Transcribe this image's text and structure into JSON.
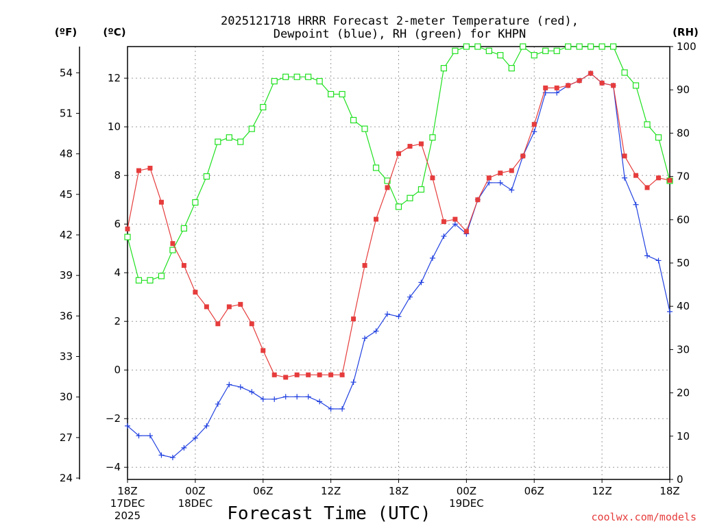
{
  "chart_data": {
    "type": "line",
    "title_line1": "2025121718 HRRR Forecast 2-meter Temperature (red),",
    "title_line2": "Dewpoint (blue), RH (green) for KHPN",
    "unit_f": "(ºF)",
    "unit_c": "(ºC)",
    "unit_rh": "(RH)",
    "xlabel": "Forecast Time (UTC)",
    "credit": "coolwx.com/models",
    "forecast_hours": [
      0,
      1,
      2,
      3,
      4,
      5,
      6,
      7,
      8,
      9,
      10,
      11,
      12,
      13,
      14,
      15,
      16,
      17,
      18,
      19,
      20,
      21,
      22,
      23,
      24,
      25,
      26,
      27,
      28,
      29,
      30,
      31,
      32,
      33,
      34,
      35,
      36,
      37,
      38,
      39,
      40,
      41,
      42,
      43,
      44,
      45,
      46,
      47,
      48
    ],
    "x_range": [
      0,
      48
    ],
    "x_ticks": [
      {
        "hour": 0,
        "label": "18Z",
        "sub1": "17DEC",
        "sub2": "2025"
      },
      {
        "hour": 6,
        "label": "00Z",
        "sub1": "18DEC",
        "sub2": ""
      },
      {
        "hour": 12,
        "label": "06Z",
        "sub1": "",
        "sub2": ""
      },
      {
        "hour": 18,
        "label": "12Z",
        "sub1": "",
        "sub2": ""
      },
      {
        "hour": 24,
        "label": "18Z",
        "sub1": "",
        "sub2": ""
      },
      {
        "hour": 30,
        "label": "00Z",
        "sub1": "19DEC",
        "sub2": ""
      },
      {
        "hour": 36,
        "label": "06Z",
        "sub1": "",
        "sub2": ""
      },
      {
        "hour": 42,
        "label": "12Z",
        "sub1": "",
        "sub2": ""
      },
      {
        "hour": 48,
        "label": "18Z",
        "sub1": "",
        "sub2": ""
      }
    ],
    "celsius_range": [
      -4.5,
      13.3
    ],
    "celsius_ticks": [
      "-4",
      "-2",
      "0",
      "2",
      "4",
      "6",
      "8",
      "10",
      "12"
    ],
    "fahrenheit_ticks": [
      "24",
      "27",
      "30",
      "33",
      "36",
      "39",
      "42",
      "45",
      "48",
      "51",
      "54"
    ],
    "rh_range": [
      0,
      100
    ],
    "rh_ticks": [
      "0",
      "10",
      "20",
      "30",
      "40",
      "50",
      "60",
      "70",
      "80",
      "90",
      "100"
    ],
    "series": [
      {
        "name": "Temperature",
        "unit": "C",
        "color": "#e63c3c",
        "marker": "filled-square",
        "values": [
          5.8,
          8.2,
          8.3,
          6.9,
          5.2,
          4.3,
          3.2,
          2.6,
          1.9,
          2.6,
          2.7,
          1.9,
          0.8,
          -0.2,
          -0.3,
          -0.2,
          -0.2,
          -0.2,
          -0.2,
          -0.2,
          2.1,
          4.3,
          6.2,
          7.5,
          8.9,
          9.2,
          9.3,
          7.9,
          6.1,
          6.2,
          5.7,
          7.0,
          7.9,
          8.1,
          8.2,
          8.8,
          10.1,
          11.6,
          11.6,
          11.7,
          11.9,
          12.2,
          11.8,
          11.7,
          8.8,
          8.0,
          7.5,
          7.9,
          7.8
        ]
      },
      {
        "name": "Dewpoint",
        "unit": "C",
        "color": "#2040e0",
        "marker": "plus",
        "values": [
          -2.3,
          -2.7,
          -2.7,
          -3.5,
          -3.6,
          -3.2,
          -2.8,
          -2.3,
          -1.4,
          -0.6,
          -0.7,
          -0.9,
          -1.2,
          -1.2,
          -1.1,
          -1.1,
          -1.1,
          -1.3,
          -1.6,
          -1.6,
          -0.5,
          1.3,
          1.6,
          2.3,
          2.2,
          3.0,
          3.6,
          4.6,
          5.5,
          6.0,
          5.6,
          7.0,
          7.7,
          7.7,
          7.4,
          8.8,
          9.8,
          11.4,
          11.4,
          11.7,
          11.9,
          12.2,
          11.8,
          11.7,
          7.9,
          6.8,
          4.7,
          4.5,
          2.4
        ]
      },
      {
        "name": "RH",
        "unit": "%",
        "color": "#1ee01e",
        "marker": "open-square",
        "values": [
          56,
          46,
          46,
          47,
          53,
          58,
          64,
          70,
          78,
          79,
          78,
          81,
          86,
          92,
          93,
          93,
          93,
          92,
          89,
          89,
          83,
          81,
          72,
          69,
          63,
          65,
          67,
          79,
          95,
          99,
          100,
          100,
          99,
          98,
          95,
          100,
          98,
          99,
          99,
          100,
          100,
          100,
          100,
          100,
          94,
          91,
          82,
          79,
          69
        ]
      }
    ]
  }
}
